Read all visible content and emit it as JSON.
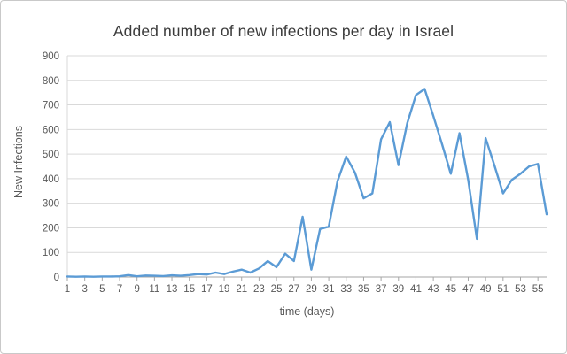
{
  "chart_data": {
    "type": "line",
    "title": "Added number of new infections per day in Israel",
    "xlabel": "time (days)",
    "ylabel": "New Infections",
    "x": [
      1,
      2,
      3,
      4,
      5,
      6,
      7,
      8,
      9,
      10,
      11,
      12,
      13,
      14,
      15,
      16,
      17,
      18,
      19,
      20,
      21,
      22,
      23,
      24,
      25,
      26,
      27,
      28,
      29,
      30,
      31,
      32,
      33,
      34,
      35,
      36,
      37,
      38,
      39,
      40,
      41,
      42,
      43,
      44,
      45,
      46,
      47,
      48,
      49,
      50,
      51,
      52,
      53,
      54,
      55,
      56
    ],
    "values": [
      2,
      1,
      2,
      1,
      2,
      2,
      3,
      8,
      3,
      6,
      5,
      4,
      7,
      5,
      8,
      12,
      10,
      18,
      12,
      22,
      30,
      18,
      35,
      65,
      40,
      95,
      65,
      245,
      30,
      195,
      205,
      390,
      490,
      425,
      320,
      340,
      560,
      630,
      455,
      625,
      740,
      765,
      655,
      540,
      420,
      585,
      395,
      155,
      565,
      455,
      340,
      395,
      420,
      450,
      460,
      255
    ],
    "xtick_labels": [
      1,
      3,
      5,
      7,
      9,
      11,
      13,
      15,
      17,
      19,
      21,
      23,
      25,
      27,
      29,
      31,
      33,
      35,
      37,
      39,
      41,
      43,
      45,
      47,
      49,
      51,
      53,
      55
    ],
    "ylim": [
      0,
      900
    ],
    "ytick_step": 100,
    "grid": "horizontal",
    "legend": "none",
    "line_color": "#5b9bd5",
    "axis_color": "#a6a6a6",
    "gridline_color": "#d9d9d9",
    "tick_label_color": "#595959"
  }
}
